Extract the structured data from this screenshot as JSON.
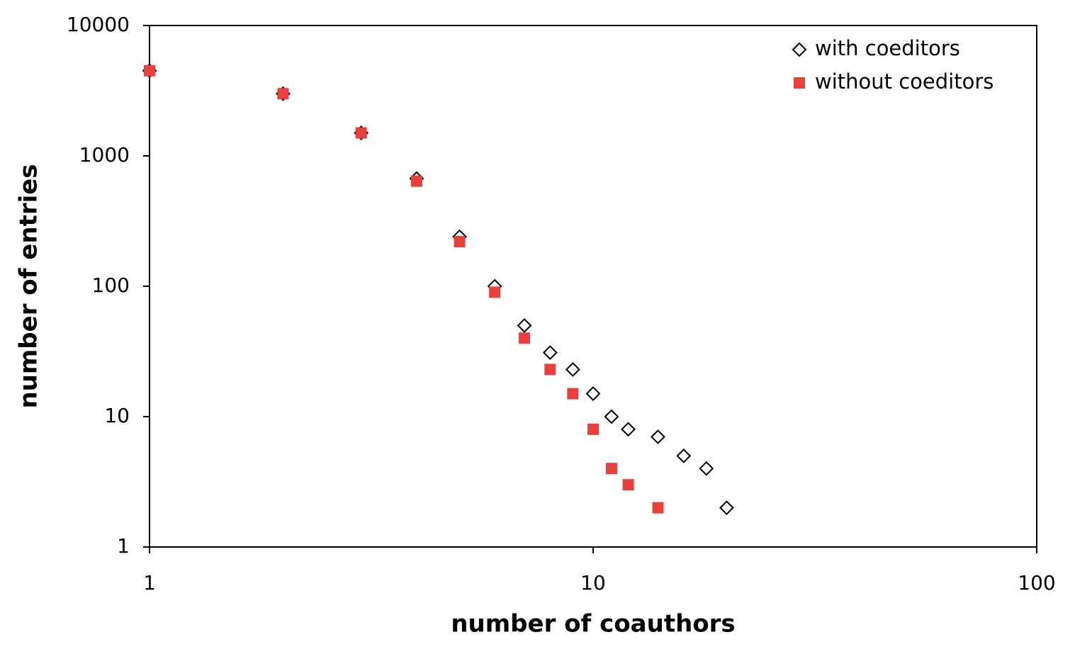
{
  "chart_data": {
    "type": "scatter",
    "xlabel": "number of coauthors",
    "ylabel": "number of entries",
    "xscale": "log",
    "yscale": "log",
    "xlim": [
      1,
      100
    ],
    "ylim": [
      1,
      10000
    ],
    "xticks": [
      1,
      10,
      100
    ],
    "yticks": [
      1,
      10,
      100,
      1000,
      10000
    ],
    "legend": "top-right",
    "series": [
      {
        "name": "with coeditors",
        "color": "#000000",
        "marker": "diamond",
        "x": [
          1,
          2,
          3,
          4,
          5,
          6,
          7,
          8,
          9,
          10,
          11,
          12,
          14,
          16,
          18,
          20
        ],
        "values": [
          4500,
          3000,
          1500,
          670,
          240,
          100,
          50,
          31,
          23,
          15,
          10,
          8,
          7,
          5,
          4,
          2
        ]
      },
      {
        "name": "without coeditors",
        "color": "#e8413d",
        "marker": "square",
        "x": [
          1,
          2,
          3,
          4,
          5,
          6,
          7,
          8,
          9,
          10,
          11,
          12,
          14
        ],
        "values": [
          4500,
          3000,
          1500,
          640,
          220,
          90,
          40,
          23,
          15,
          8,
          4,
          3,
          2
        ]
      }
    ]
  }
}
